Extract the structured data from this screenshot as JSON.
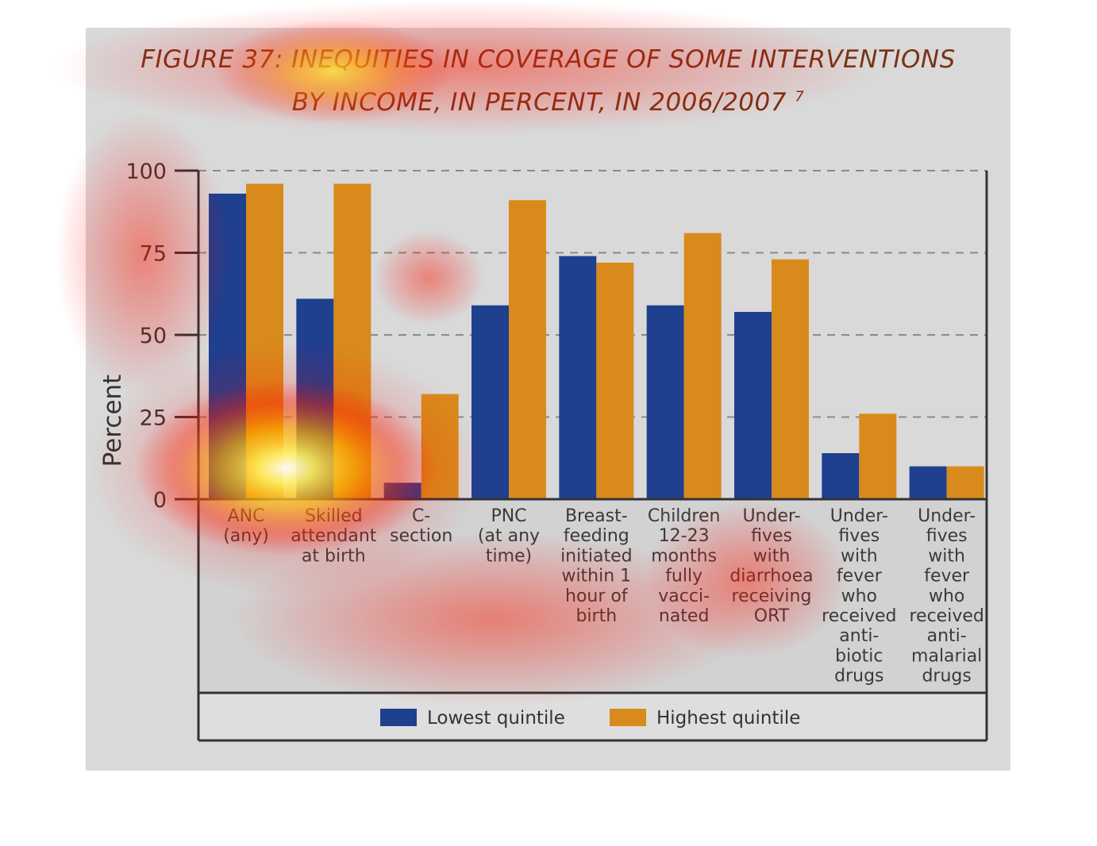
{
  "title": {
    "line1": "FIGURE 37: INEQUITIES IN COVERAGE OF SOME INTERVENTIONS",
    "line2": "BY INCOME, IN PERCENT, IN 2006/2007",
    "superscript": "7"
  },
  "chart_data": {
    "type": "bar",
    "title": "FIGURE 37: INEQUITIES IN COVERAGE OF SOME INTERVENTIONS BY INCOME, IN PERCENT, IN 2006/2007",
    "xlabel": "",
    "ylabel": "Percent",
    "ylim": [
      0,
      100
    ],
    "yticks": [
      0,
      25,
      50,
      75,
      100
    ],
    "grid": "dashed horizontal",
    "legend_position": "bottom",
    "categories": [
      [
        "ANC",
        "(any)"
      ],
      [
        "Skilled",
        "attendant",
        "at birth"
      ],
      [
        "C-",
        "section"
      ],
      [
        "PNC",
        "(at any",
        "time)"
      ],
      [
        "Breast-",
        "feeding",
        "initiated",
        "within 1",
        "hour of",
        "birth"
      ],
      [
        "Children",
        "12-23",
        "months",
        "fully",
        "vacci-",
        "nated"
      ],
      [
        "Under-",
        "fives",
        "with",
        "diarrhoea",
        "receiving",
        "ORT"
      ],
      [
        "Under-",
        "fives",
        "with",
        "fever",
        "who",
        "received",
        "anti-",
        "biotic",
        "drugs"
      ],
      [
        "Under-",
        "fives",
        "with",
        "fever",
        "who",
        "received",
        "anti-",
        "malarial",
        "drugs"
      ]
    ],
    "series": [
      {
        "name": "Lowest quintile",
        "color": "#1f3f8f",
        "values": [
          93,
          61,
          5,
          59,
          74,
          59,
          57,
          14,
          10
        ]
      },
      {
        "name": "Highest quintile",
        "color": "#d98a1c",
        "values": [
          96,
          96,
          32,
          91,
          72,
          81,
          73,
          26,
          10
        ]
      }
    ]
  },
  "colors": {
    "panel": "#d9d9d9",
    "axis": "#333333",
    "title": "#7a3216",
    "grid": "#8a8a8a"
  }
}
